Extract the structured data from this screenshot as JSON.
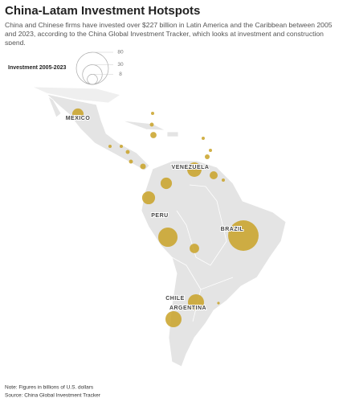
{
  "chart_data": {
    "type": "bubble_map",
    "title": "China-Latam Investment Hotspots",
    "subtitle": "China and Chinese firms have invested over $227 billion in Latin America and the Caribbean between 2005 and 2023, according to the China Global Investment Tracker, which looks at investment and construction spend.",
    "legend_title": "Investment 2005-2023",
    "size_ticks": [
      80,
      30,
      8
    ],
    "color": "#c9a227",
    "countries": [
      "MEXICO",
      "VENEZUELA",
      "PERU",
      "BRAZIL",
      "CHILE",
      "ARGENTINA"
    ],
    "values": [
      10,
      0.8,
      1.2,
      3,
      0.8,
      0.8,
      1.2,
      1.2,
      2.5,
      0.8,
      0.8,
      1.8,
      16,
      5,
      0.8,
      10,
      13,
      29,
      72,
      7,
      20,
      20,
      0.5
    ],
    "note": "Note: Figures in billions of U.S. dollars",
    "source": "Source: China Global Investment Tracker"
  }
}
